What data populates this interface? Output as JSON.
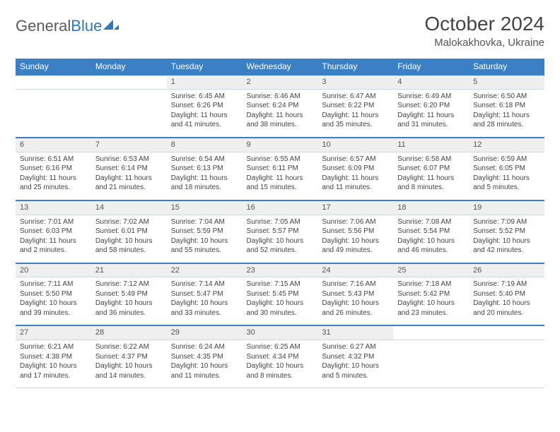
{
  "brand": {
    "part1": "General",
    "part2": "Blue"
  },
  "title": "October 2024",
  "location": "Malokakhovka, Ukraine",
  "colors": {
    "header_bg": "#3b7fc4",
    "header_text": "#ffffff",
    "daynum_bg": "#efefef",
    "row_border": "#3b7fc4",
    "cell_border": "#cfd8e3",
    "text": "#444444",
    "brand_gray": "#5a5a5a",
    "brand_blue": "#2f77bc"
  },
  "typography": {
    "title_fontsize": 28,
    "location_fontsize": 15,
    "header_fontsize": 12,
    "daynum_fontsize": 11,
    "cell_fontsize": 10
  },
  "day_headers": [
    "Sunday",
    "Monday",
    "Tuesday",
    "Wednesday",
    "Thursday",
    "Friday",
    "Saturday"
  ],
  "weeks": [
    [
      null,
      null,
      {
        "n": "1",
        "sunrise": "Sunrise: 6:45 AM",
        "sunset": "Sunset: 6:26 PM",
        "daylight": "Daylight: 11 hours and 41 minutes."
      },
      {
        "n": "2",
        "sunrise": "Sunrise: 6:46 AM",
        "sunset": "Sunset: 6:24 PM",
        "daylight": "Daylight: 11 hours and 38 minutes."
      },
      {
        "n": "3",
        "sunrise": "Sunrise: 6:47 AM",
        "sunset": "Sunset: 6:22 PM",
        "daylight": "Daylight: 11 hours and 35 minutes."
      },
      {
        "n": "4",
        "sunrise": "Sunrise: 6:49 AM",
        "sunset": "Sunset: 6:20 PM",
        "daylight": "Daylight: 11 hours and 31 minutes."
      },
      {
        "n": "5",
        "sunrise": "Sunrise: 6:50 AM",
        "sunset": "Sunset: 6:18 PM",
        "daylight": "Daylight: 11 hours and 28 minutes."
      }
    ],
    [
      {
        "n": "6",
        "sunrise": "Sunrise: 6:51 AM",
        "sunset": "Sunset: 6:16 PM",
        "daylight": "Daylight: 11 hours and 25 minutes."
      },
      {
        "n": "7",
        "sunrise": "Sunrise: 6:53 AM",
        "sunset": "Sunset: 6:14 PM",
        "daylight": "Daylight: 11 hours and 21 minutes."
      },
      {
        "n": "8",
        "sunrise": "Sunrise: 6:54 AM",
        "sunset": "Sunset: 6:13 PM",
        "daylight": "Daylight: 11 hours and 18 minutes."
      },
      {
        "n": "9",
        "sunrise": "Sunrise: 6:55 AM",
        "sunset": "Sunset: 6:11 PM",
        "daylight": "Daylight: 11 hours and 15 minutes."
      },
      {
        "n": "10",
        "sunrise": "Sunrise: 6:57 AM",
        "sunset": "Sunset: 6:09 PM",
        "daylight": "Daylight: 11 hours and 11 minutes."
      },
      {
        "n": "11",
        "sunrise": "Sunrise: 6:58 AM",
        "sunset": "Sunset: 6:07 PM",
        "daylight": "Daylight: 11 hours and 8 minutes."
      },
      {
        "n": "12",
        "sunrise": "Sunrise: 6:59 AM",
        "sunset": "Sunset: 6:05 PM",
        "daylight": "Daylight: 11 hours and 5 minutes."
      }
    ],
    [
      {
        "n": "13",
        "sunrise": "Sunrise: 7:01 AM",
        "sunset": "Sunset: 6:03 PM",
        "daylight": "Daylight: 11 hours and 2 minutes."
      },
      {
        "n": "14",
        "sunrise": "Sunrise: 7:02 AM",
        "sunset": "Sunset: 6:01 PM",
        "daylight": "Daylight: 10 hours and 58 minutes."
      },
      {
        "n": "15",
        "sunrise": "Sunrise: 7:04 AM",
        "sunset": "Sunset: 5:59 PM",
        "daylight": "Daylight: 10 hours and 55 minutes."
      },
      {
        "n": "16",
        "sunrise": "Sunrise: 7:05 AM",
        "sunset": "Sunset: 5:57 PM",
        "daylight": "Daylight: 10 hours and 52 minutes."
      },
      {
        "n": "17",
        "sunrise": "Sunrise: 7:06 AM",
        "sunset": "Sunset: 5:56 PM",
        "daylight": "Daylight: 10 hours and 49 minutes."
      },
      {
        "n": "18",
        "sunrise": "Sunrise: 7:08 AM",
        "sunset": "Sunset: 5:54 PM",
        "daylight": "Daylight: 10 hours and 46 minutes."
      },
      {
        "n": "19",
        "sunrise": "Sunrise: 7:09 AM",
        "sunset": "Sunset: 5:52 PM",
        "daylight": "Daylight: 10 hours and 42 minutes."
      }
    ],
    [
      {
        "n": "20",
        "sunrise": "Sunrise: 7:11 AM",
        "sunset": "Sunset: 5:50 PM",
        "daylight": "Daylight: 10 hours and 39 minutes."
      },
      {
        "n": "21",
        "sunrise": "Sunrise: 7:12 AM",
        "sunset": "Sunset: 5:49 PM",
        "daylight": "Daylight: 10 hours and 36 minutes."
      },
      {
        "n": "22",
        "sunrise": "Sunrise: 7:14 AM",
        "sunset": "Sunset: 5:47 PM",
        "daylight": "Daylight: 10 hours and 33 minutes."
      },
      {
        "n": "23",
        "sunrise": "Sunrise: 7:15 AM",
        "sunset": "Sunset: 5:45 PM",
        "daylight": "Daylight: 10 hours and 30 minutes."
      },
      {
        "n": "24",
        "sunrise": "Sunrise: 7:16 AM",
        "sunset": "Sunset: 5:43 PM",
        "daylight": "Daylight: 10 hours and 26 minutes."
      },
      {
        "n": "25",
        "sunrise": "Sunrise: 7:18 AM",
        "sunset": "Sunset: 5:42 PM",
        "daylight": "Daylight: 10 hours and 23 minutes."
      },
      {
        "n": "26",
        "sunrise": "Sunrise: 7:19 AM",
        "sunset": "Sunset: 5:40 PM",
        "daylight": "Daylight: 10 hours and 20 minutes."
      }
    ],
    [
      {
        "n": "27",
        "sunrise": "Sunrise: 6:21 AM",
        "sunset": "Sunset: 4:38 PM",
        "daylight": "Daylight: 10 hours and 17 minutes."
      },
      {
        "n": "28",
        "sunrise": "Sunrise: 6:22 AM",
        "sunset": "Sunset: 4:37 PM",
        "daylight": "Daylight: 10 hours and 14 minutes."
      },
      {
        "n": "29",
        "sunrise": "Sunrise: 6:24 AM",
        "sunset": "Sunset: 4:35 PM",
        "daylight": "Daylight: 10 hours and 11 minutes."
      },
      {
        "n": "30",
        "sunrise": "Sunrise: 6:25 AM",
        "sunset": "Sunset: 4:34 PM",
        "daylight": "Daylight: 10 hours and 8 minutes."
      },
      {
        "n": "31",
        "sunrise": "Sunrise: 6:27 AM",
        "sunset": "Sunset: 4:32 PM",
        "daylight": "Daylight: 10 hours and 5 minutes."
      },
      null,
      null
    ]
  ]
}
